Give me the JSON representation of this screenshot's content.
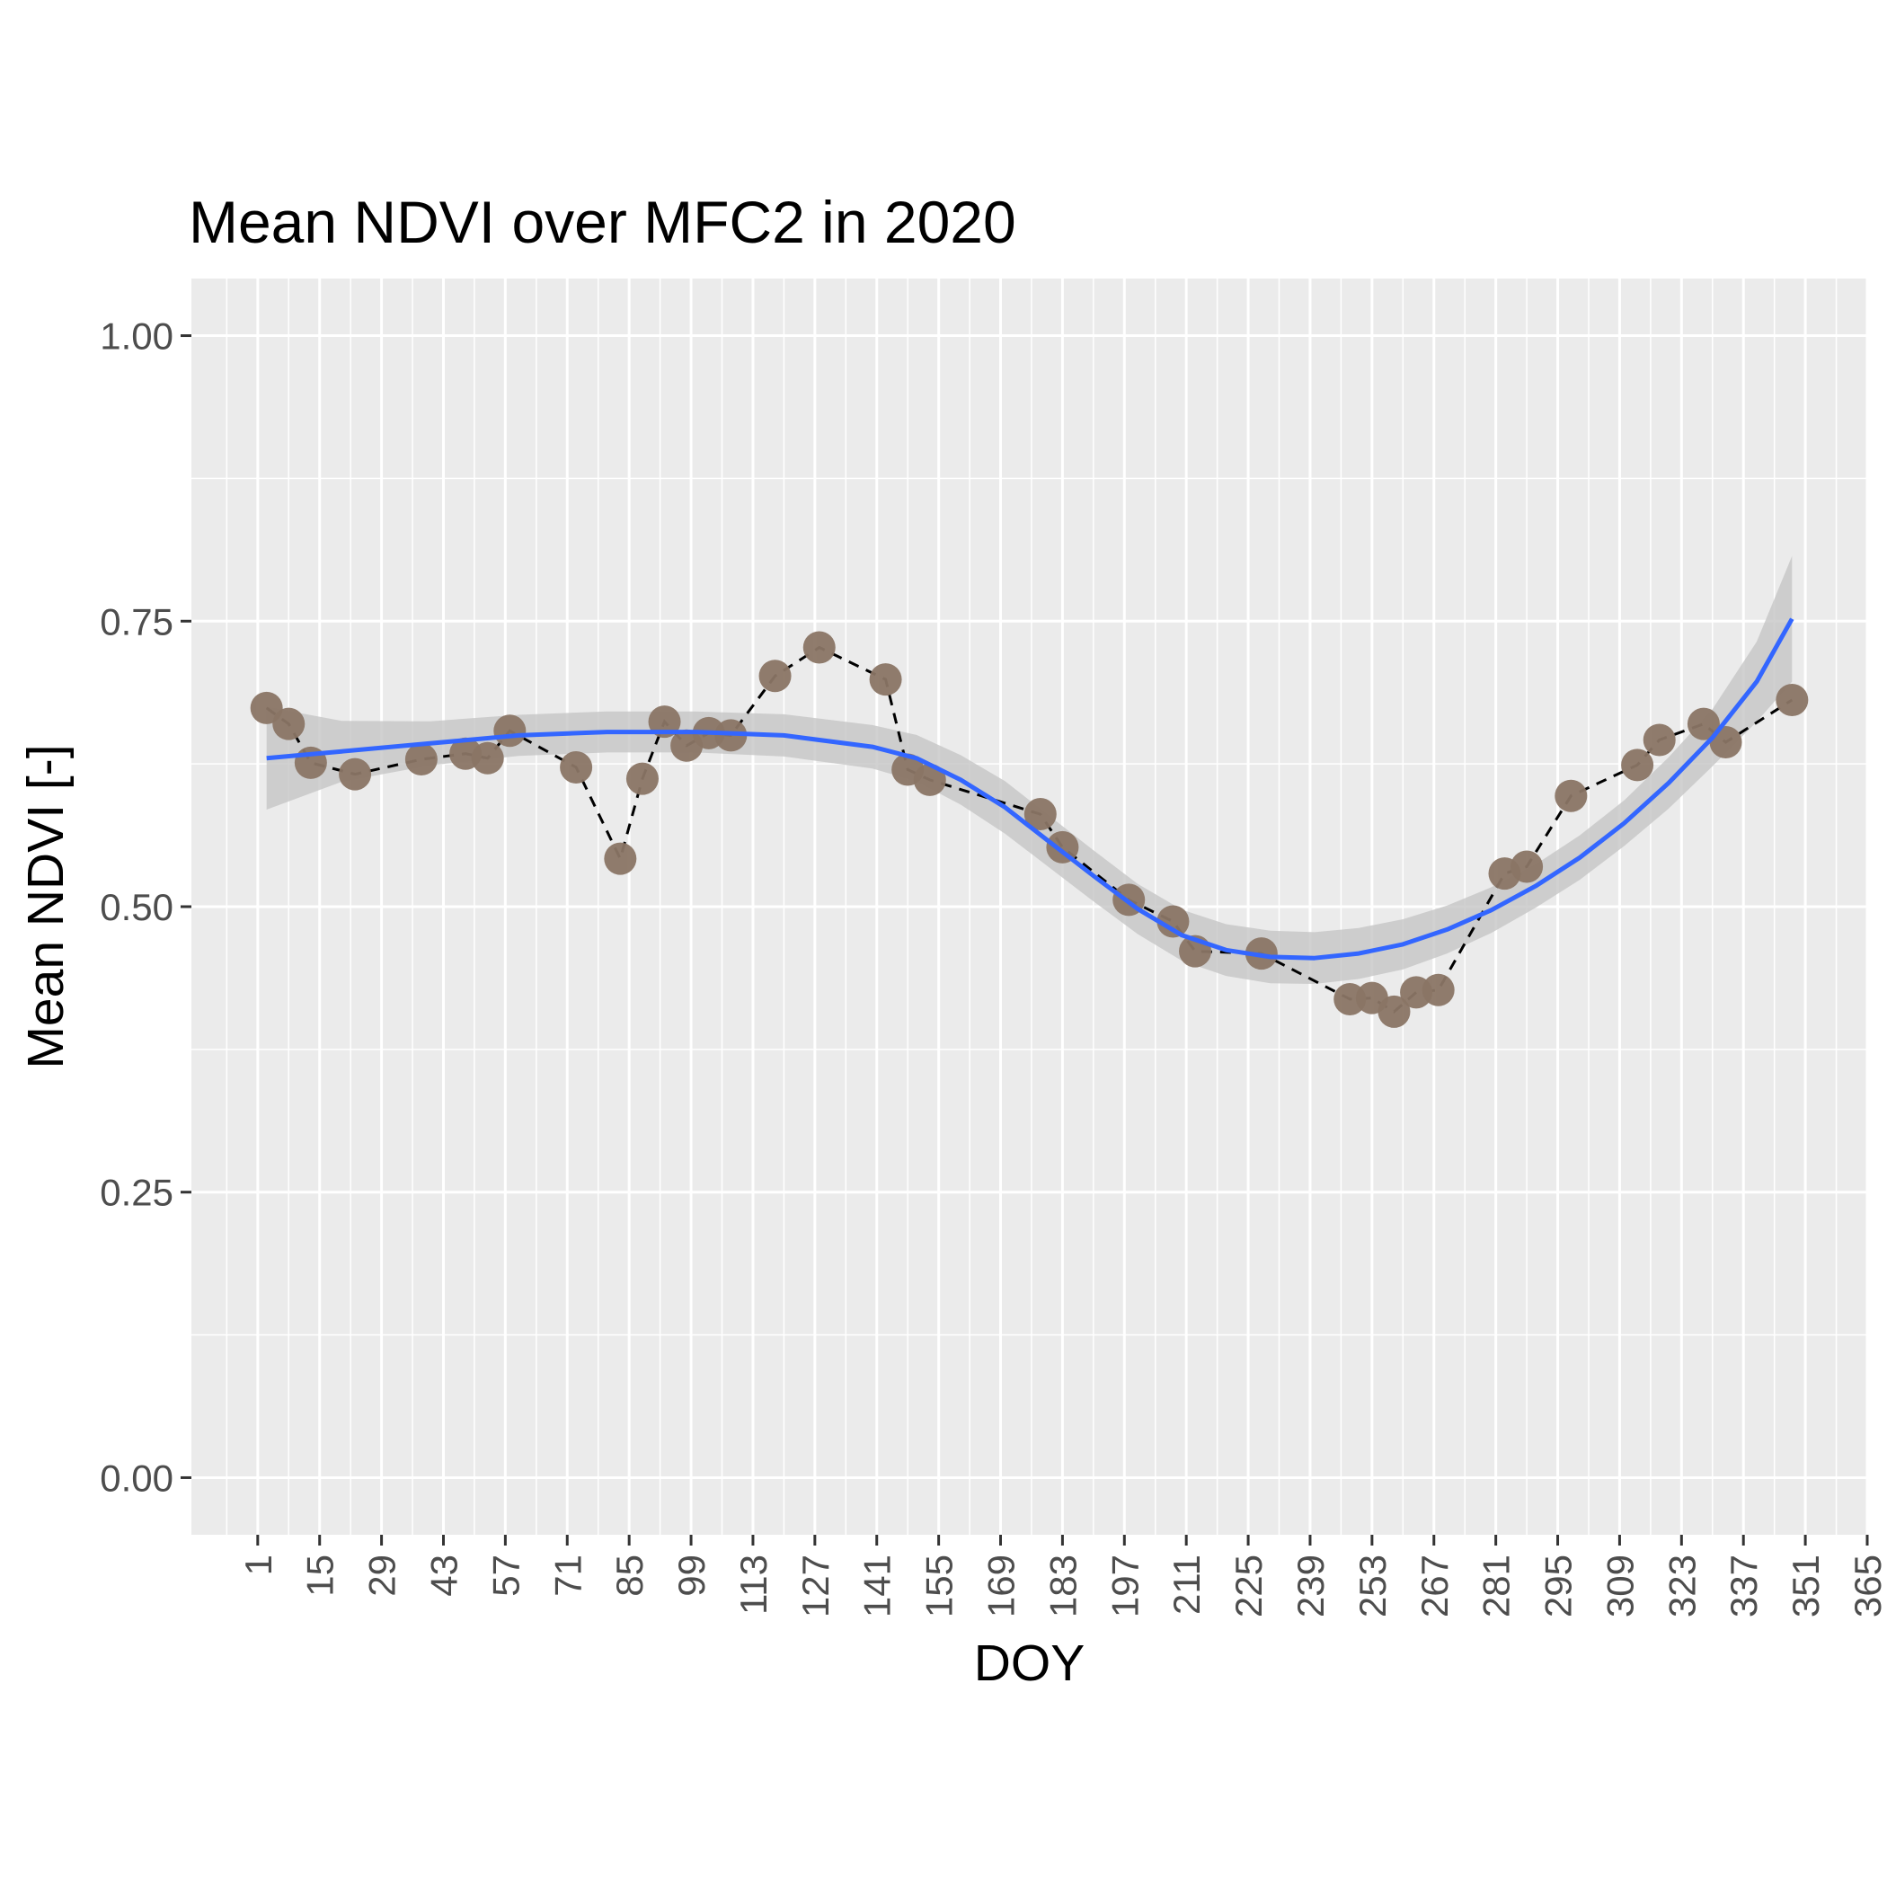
{
  "chart_data": {
    "type": "scatter",
    "title": "Mean NDVI over MFC2 in 2020",
    "xlabel": "DOY",
    "ylabel": "Mean NDVI [-]",
    "xlim": [
      -14,
      365
    ],
    "ylim": [
      -0.05,
      1.05
    ],
    "x_ticks": [
      1,
      15,
      29,
      43,
      57,
      71,
      85,
      99,
      113,
      127,
      141,
      155,
      169,
      183,
      197,
      211,
      225,
      239,
      253,
      267,
      281,
      295,
      309,
      323,
      337,
      351,
      365
    ],
    "y_ticks": [
      0.0,
      0.25,
      0.5,
      0.75,
      1.0
    ],
    "y_tick_labels": [
      "0.00",
      "0.25",
      "0.50",
      "0.75",
      "1.00"
    ],
    "grid": true,
    "legend": "none",
    "colors": {
      "panel": "#ebebeb",
      "grid": "#ffffff",
      "points": "#8a7565",
      "smooth": "#3366ff",
      "ribbon": "#c6c6c6",
      "connector": "#000000",
      "tick_text": "#4d4d4d"
    },
    "series": [
      {
        "type": "points",
        "points": [
          [
            3,
            0.674
          ],
          [
            8,
            0.66
          ],
          [
            13,
            0.626
          ],
          [
            23,
            0.616
          ],
          [
            38,
            0.629
          ],
          [
            48,
            0.634
          ],
          [
            53,
            0.63
          ],
          [
            58,
            0.654
          ],
          [
            73,
            0.622
          ],
          [
            83,
            0.542
          ],
          [
            88,
            0.612
          ],
          [
            93,
            0.662
          ],
          [
            98,
            0.641
          ],
          [
            103,
            0.652
          ],
          [
            108,
            0.65
          ],
          [
            118,
            0.702
          ],
          [
            128,
            0.727
          ],
          [
            143,
            0.699
          ],
          [
            148,
            0.62
          ],
          [
            153,
            0.611
          ],
          [
            178,
            0.581
          ],
          [
            183,
            0.552
          ],
          [
            198,
            0.506
          ],
          [
            208,
            0.487
          ],
          [
            213,
            0.461
          ],
          [
            228,
            0.459
          ],
          [
            248,
            0.419
          ],
          [
            253,
            0.42
          ],
          [
            258,
            0.408
          ],
          [
            263,
            0.425
          ],
          [
            268,
            0.427
          ],
          [
            283,
            0.529
          ],
          [
            288,
            0.535
          ],
          [
            298,
            0.597
          ],
          [
            313,
            0.624
          ],
          [
            318,
            0.646
          ],
          [
            328,
            0.66
          ],
          [
            333,
            0.644
          ],
          [
            348,
            0.681
          ]
        ]
      },
      {
        "type": "smooth",
        "points": [
          [
            3,
            0.63
          ],
          [
            20,
            0.636
          ],
          [
            40,
            0.643
          ],
          [
            60,
            0.65
          ],
          [
            80,
            0.653
          ],
          [
            100,
            0.653
          ],
          [
            120,
            0.65
          ],
          [
            140,
            0.64
          ],
          [
            150,
            0.63
          ],
          [
            160,
            0.611
          ],
          [
            170,
            0.587
          ],
          [
            180,
            0.557
          ],
          [
            190,
            0.527
          ],
          [
            200,
            0.498
          ],
          [
            210,
            0.475
          ],
          [
            220,
            0.462
          ],
          [
            230,
            0.456
          ],
          [
            240,
            0.455
          ],
          [
            250,
            0.459
          ],
          [
            260,
            0.467
          ],
          [
            270,
            0.48
          ],
          [
            280,
            0.497
          ],
          [
            290,
            0.518
          ],
          [
            300,
            0.543
          ],
          [
            310,
            0.573
          ],
          [
            320,
            0.608
          ],
          [
            330,
            0.648
          ],
          [
            340,
            0.697
          ],
          [
            348,
            0.752
          ]
        ],
        "ribbon_half_width": [
          [
            3,
            0.045
          ],
          [
            15,
            0.03
          ],
          [
            30,
            0.02
          ],
          [
            60,
            0.018
          ],
          [
            100,
            0.018
          ],
          [
            140,
            0.019
          ],
          [
            170,
            0.023
          ],
          [
            200,
            0.022
          ],
          [
            230,
            0.023
          ],
          [
            260,
            0.022
          ],
          [
            290,
            0.019
          ],
          [
            310,
            0.02
          ],
          [
            330,
            0.025
          ],
          [
            340,
            0.035
          ],
          [
            348,
            0.055
          ]
        ]
      }
    ]
  }
}
